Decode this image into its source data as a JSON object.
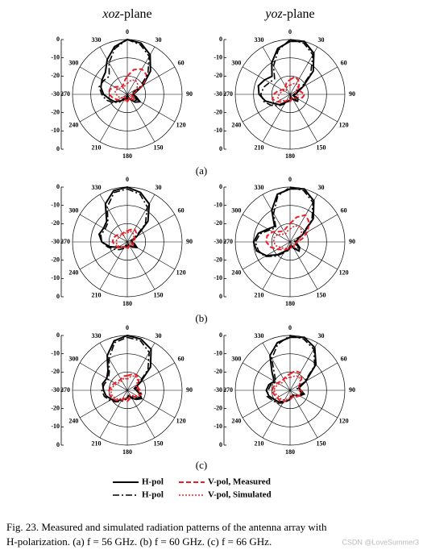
{
  "columns": [
    {
      "italic": "xoz",
      "text": "-plane"
    },
    {
      "italic": "yoz",
      "text": "-plane"
    }
  ],
  "panels": [
    "(a)",
    "(b)",
    "(c)"
  ],
  "legend": [
    {
      "name": "H-pol",
      "color": "#000000",
      "style": "solid"
    },
    {
      "name": "V-pol, Measured",
      "color": "#e8202a",
      "style": "dashed"
    },
    {
      "name": "H-pol",
      "color": "#000000",
      "style": "dashdot"
    },
    {
      "name": "V-pol, Simulated",
      "color": "#e8202a",
      "style": "dotted"
    }
  ],
  "theta": [
    0,
    15,
    30,
    45,
    60,
    75,
    90,
    105,
    120,
    135,
    150,
    165,
    180,
    195,
    210,
    225,
    240,
    255,
    270,
    285,
    300,
    315,
    330,
    345
  ],
  "chart_data": [
    {
      "type": "polar",
      "rlim": [
        -30,
        0
      ],
      "rticks": [
        0,
        -10,
        -20,
        -30
      ],
      "angle_ticks": [
        0,
        30,
        60,
        90,
        120,
        150,
        180,
        210,
        240,
        270,
        300,
        330
      ],
      "grid": true,
      "series": [
        {
          "values": [
            0,
            -1,
            -5,
            -12,
            -20,
            -25,
            -27,
            -25,
            -22,
            -24,
            -27,
            -28,
            -26,
            -28,
            -27,
            -25,
            -22,
            -20,
            -17,
            -15,
            -14,
            -13,
            -8,
            -3
          ]
        },
        {
          "values": [
            -20,
            -16,
            -14,
            -15,
            -20,
            -26,
            -28,
            -27,
            -25,
            -26,
            -28,
            -27,
            -26,
            -27,
            -28,
            -26,
            -24,
            -22,
            -20,
            -20,
            -22,
            -24,
            -25,
            -23
          ]
        },
        {
          "values": [
            0,
            -2,
            -6,
            -14,
            -22,
            -27,
            -28,
            -26,
            -24,
            -25,
            -28,
            -29,
            -27,
            -29,
            -28,
            -24,
            -21,
            -18,
            -16,
            -14,
            -15,
            -16,
            -10,
            -4
          ]
        },
        {
          "values": [
            -24,
            -22,
            -21,
            -22,
            -24,
            -26,
            -27,
            -28,
            -27,
            -26,
            -27,
            -28,
            -27,
            -26,
            -27,
            -28,
            -26,
            -25,
            -24,
            -23,
            -24,
            -25,
            -26,
            -25
          ]
        }
      ]
    },
    {
      "type": "polar",
      "rlim": [
        -30,
        0
      ],
      "rticks": [
        0,
        -10,
        -20,
        -30
      ],
      "angle_ticks": [
        0,
        30,
        60,
        90,
        120,
        150,
        180,
        210,
        240,
        270,
        300,
        330
      ],
      "grid": true,
      "series": [
        {
          "values": [
            -1,
            0,
            -4,
            -12,
            -22,
            -26,
            -27,
            -28,
            -27,
            -25,
            -27,
            -28,
            -27,
            -26,
            -25,
            -22,
            -20,
            -16,
            -13,
            -12,
            -14,
            -16,
            -10,
            -4
          ]
        },
        {
          "values": [
            -22,
            -20,
            -21,
            -23,
            -25,
            -24,
            -22,
            -23,
            -26,
            -27,
            -28,
            -27,
            -26,
            -27,
            -26,
            -24,
            -22,
            -20,
            -21,
            -23,
            -25,
            -26,
            -25,
            -23
          ]
        },
        {
          "values": [
            0,
            -1,
            -5,
            -14,
            -23,
            -27,
            -28,
            -27,
            -25,
            -24,
            -27,
            -29,
            -28,
            -27,
            -24,
            -21,
            -18,
            -15,
            -14,
            -15,
            -17,
            -18,
            -12,
            -5
          ]
        },
        {
          "values": [
            -25,
            -24,
            -23,
            -24,
            -26,
            -27,
            -26,
            -25,
            -26,
            -27,
            -28,
            -28,
            -27,
            -27,
            -26,
            -25,
            -24,
            -23,
            -24,
            -25,
            -26,
            -27,
            -26,
            -25
          ]
        }
      ]
    },
    {
      "type": "polar",
      "rlim": [
        -30,
        0
      ],
      "rticks": [
        0,
        -10,
        -20,
        -30
      ],
      "angle_ticks": [
        0,
        30,
        60,
        90,
        120,
        150,
        180,
        210,
        240,
        270,
        300,
        330
      ],
      "grid": true,
      "series": [
        {
          "values": [
            0,
            -2,
            -6,
            -14,
            -24,
            -27,
            -28,
            -26,
            -24,
            -26,
            -28,
            -28,
            -27,
            -28,
            -27,
            -26,
            -24,
            -20,
            -16,
            -14,
            -15,
            -14,
            -6,
            -1
          ]
        },
        {
          "values": [
            -24,
            -23,
            -22,
            -23,
            -25,
            -26,
            -27,
            -27,
            -26,
            -27,
            -28,
            -27,
            -26,
            -27,
            -27,
            -26,
            -24,
            -23,
            -22,
            -22,
            -23,
            -24,
            -25,
            -24
          ]
        },
        {
          "values": [
            -1,
            -3,
            -8,
            -16,
            -25,
            -28,
            -28,
            -27,
            -25,
            -26,
            -28,
            -29,
            -28,
            -28,
            -26,
            -24,
            -22,
            -19,
            -16,
            -15,
            -16,
            -15,
            -8,
            -2
          ]
        },
        {
          "values": [
            -25,
            -24,
            -24,
            -25,
            -26,
            -27,
            -28,
            -27,
            -27,
            -27,
            -28,
            -28,
            -27,
            -27,
            -27,
            -26,
            -25,
            -24,
            -24,
            -24,
            -25,
            -25,
            -26,
            -25
          ]
        }
      ]
    },
    {
      "type": "polar",
      "rlim": [
        -30,
        0
      ],
      "rticks": [
        0,
        -10,
        -20,
        -30
      ],
      "angle_ticks": [
        0,
        30,
        60,
        90,
        120,
        150,
        180,
        210,
        240,
        270,
        300,
        330
      ],
      "grid": true,
      "series": [
        {
          "values": [
            -1,
            0,
            -4,
            -12,
            -22,
            -26,
            -27,
            -26,
            -24,
            -23,
            -26,
            -28,
            -27,
            -25,
            -24,
            -20,
            -15,
            -11,
            -10,
            -12,
            -16,
            -18,
            -10,
            -3
          ]
        },
        {
          "values": [
            -20,
            -16,
            -13,
            -15,
            -19,
            -23,
            -26,
            -27,
            -26,
            -26,
            -27,
            -27,
            -26,
            -26,
            -25,
            -24,
            -22,
            -19,
            -17,
            -17,
            -19,
            -22,
            -23,
            -22
          ]
        },
        {
          "values": [
            0,
            -1,
            -5,
            -13,
            -23,
            -27,
            -28,
            -27,
            -25,
            -24,
            -27,
            -28,
            -28,
            -26,
            -23,
            -19,
            -14,
            -12,
            -11,
            -13,
            -17,
            -19,
            -12,
            -4
          ]
        },
        {
          "values": [
            -23,
            -21,
            -20,
            -21,
            -23,
            -25,
            -26,
            -27,
            -27,
            -27,
            -28,
            -28,
            -27,
            -27,
            -26,
            -25,
            -24,
            -22,
            -21,
            -21,
            -22,
            -24,
            -25,
            -24
          ]
        }
      ]
    },
    {
      "type": "polar",
      "rlim": [
        -30,
        0
      ],
      "rticks": [
        0,
        -10,
        -20,
        -30
      ],
      "angle_ticks": [
        0,
        30,
        60,
        90,
        120,
        150,
        180,
        210,
        240,
        270,
        300,
        330
      ],
      "grid": true,
      "series": [
        {
          "values": [
            0,
            -1,
            -4,
            -12,
            -22,
            -26,
            -25,
            -23,
            -21,
            -23,
            -25,
            -27,
            -26,
            -25,
            -24,
            -22,
            -20,
            -18,
            -17,
            -16,
            -17,
            -15,
            -8,
            -2
          ]
        },
        {
          "values": [
            -22,
            -21,
            -20,
            -21,
            -23,
            -24,
            -23,
            -22,
            -23,
            -25,
            -26,
            -25,
            -24,
            -25,
            -24,
            -22,
            -21,
            -20,
            -20,
            -21,
            -22,
            -23,
            -23,
            -22
          ]
        },
        {
          "values": [
            -1,
            -2,
            -6,
            -14,
            -23,
            -25,
            -24,
            -22,
            -22,
            -24,
            -26,
            -27,
            -26,
            -24,
            -23,
            -21,
            -19,
            -17,
            -16,
            -17,
            -18,
            -16,
            -10,
            -3
          ]
        },
        {
          "values": [
            -24,
            -22,
            -21,
            -22,
            -24,
            -25,
            -24,
            -23,
            -24,
            -26,
            -27,
            -26,
            -25,
            -26,
            -25,
            -23,
            -22,
            -21,
            -21,
            -22,
            -23,
            -24,
            -24,
            -23
          ]
        }
      ]
    },
    {
      "type": "polar",
      "rlim": [
        -30,
        0
      ],
      "rticks": [
        0,
        -10,
        -20,
        -30
      ],
      "angle_ticks": [
        0,
        30,
        60,
        90,
        120,
        150,
        180,
        210,
        240,
        270,
        300,
        330
      ],
      "grid": true,
      "series": [
        {
          "values": [
            -1,
            0,
            -3,
            -10,
            -20,
            -25,
            -24,
            -22,
            -24,
            -26,
            -27,
            -26,
            -25,
            -24,
            -23,
            -21,
            -20,
            -18,
            -17,
            -18,
            -20,
            -16,
            -8,
            -3
          ]
        },
        {
          "values": [
            -21,
            -19,
            -19,
            -21,
            -24,
            -25,
            -24,
            -23,
            -24,
            -25,
            -26,
            -26,
            -25,
            -24,
            -23,
            -22,
            -22,
            -21,
            -20,
            -21,
            -22,
            -23,
            -23,
            -22
          ]
        },
        {
          "values": [
            0,
            -1,
            -4,
            -11,
            -21,
            -26,
            -25,
            -23,
            -25,
            -26,
            -27,
            -27,
            -26,
            -24,
            -22,
            -20,
            -19,
            -17,
            -18,
            -19,
            -21,
            -18,
            -10,
            -4
          ]
        },
        {
          "values": [
            -23,
            -22,
            -21,
            -22,
            -24,
            -25,
            -25,
            -24,
            -25,
            -26,
            -27,
            -27,
            -26,
            -25,
            -24,
            -23,
            -23,
            -22,
            -21,
            -22,
            -23,
            -24,
            -24,
            -23
          ]
        }
      ]
    }
  ],
  "caption": [
    "Fig. 23. Measured and simulated radiation patterns of the antenna array with",
    "H-polarization. (a) f = 56 GHz. (b) f = 60 GHz. (c) f = 66 GHz."
  ],
  "watermark": "CSDN @LoveSummer3"
}
